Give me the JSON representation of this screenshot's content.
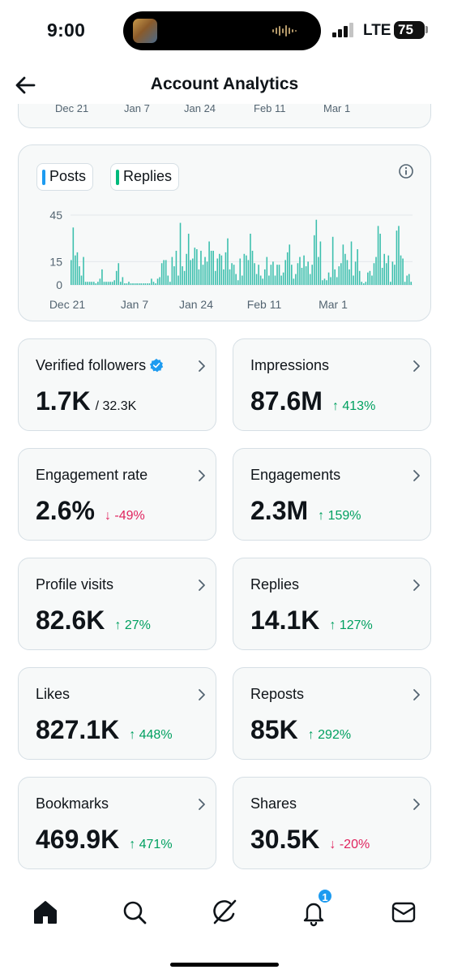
{
  "status_bar": {
    "time": "9:00",
    "network": "LTE",
    "battery": "75"
  },
  "header": {
    "title": "Account Analytics"
  },
  "top_chart": {
    "x_labels": [
      "Dec 21",
      "Jan 7",
      "Jan 24",
      "Feb 11",
      "Mar 1"
    ]
  },
  "chart_data": {
    "type": "bar",
    "legend": [
      "Posts",
      "Replies"
    ],
    "series": [
      {
        "name": "Replies",
        "values": [
          16,
          37,
          19,
          21,
          12,
          6,
          18,
          2,
          2,
          2,
          2,
          2,
          1,
          2,
          4,
          10,
          2,
          2,
          2,
          2,
          2,
          3,
          9,
          14,
          2,
          5,
          1,
          1,
          2,
          1,
          1,
          1,
          1,
          1,
          1,
          1,
          1,
          1,
          1,
          4,
          2,
          1,
          4,
          5,
          14,
          16,
          16,
          6,
          2,
          18,
          12,
          22,
          6,
          40,
          12,
          9,
          20,
          33,
          16,
          17,
          24,
          23,
          10,
          22,
          13,
          18,
          15,
          28,
          22,
          22,
          9,
          17,
          20,
          19,
          10,
          21,
          30,
          10,
          14,
          13,
          7,
          3,
          17,
          6,
          20,
          19,
          16,
          33,
          22,
          14,
          7,
          13,
          6,
          4,
          10,
          18,
          6,
          13,
          15,
          6,
          13,
          13,
          6,
          8,
          16,
          21,
          26,
          13,
          4,
          7,
          14,
          18,
          11,
          19,
          12,
          15,
          7,
          13,
          32,
          42,
          18,
          28,
          3,
          4,
          3,
          8,
          5,
          31,
          10,
          5,
          12,
          14,
          26,
          20,
          16,
          10,
          28,
          6,
          15,
          23,
          9,
          2,
          1,
          2,
          8,
          9,
          6,
          14,
          18,
          38,
          33,
          11,
          20,
          14,
          19,
          2,
          15,
          13,
          35,
          38,
          19,
          17,
          2,
          6,
          7,
          2
        ]
      }
    ],
    "x_tick_labels": [
      "Dec 21",
      "Jan 7",
      "Jan 24",
      "Feb 11",
      "Mar 1"
    ],
    "y_tick_labels": [
      "0",
      "15",
      "45"
    ],
    "ylim": [
      0,
      45
    ],
    "colors": {
      "posts": "#1d9bf0",
      "replies": "#00ba7c",
      "bar": "#3bbfad"
    }
  },
  "metrics": [
    {
      "label": "Verified followers",
      "value": "1.7K",
      "sub": "/ 32.3K",
      "delta": "",
      "verified": true
    },
    {
      "label": "Impressions",
      "value": "87.6M",
      "sub": "",
      "delta": "↑ 413%",
      "dir": "up"
    },
    {
      "label": "Engagement rate",
      "value": "2.6%",
      "sub": "",
      "delta": "↓ -49%",
      "dir": "down"
    },
    {
      "label": "Engagements",
      "value": "2.3M",
      "sub": "",
      "delta": "↑ 159%",
      "dir": "up"
    },
    {
      "label": "Profile visits",
      "value": "82.6K",
      "sub": "",
      "delta": "↑ 27%",
      "dir": "up"
    },
    {
      "label": "Replies",
      "value": "14.1K",
      "sub": "",
      "delta": "↑ 127%",
      "dir": "up"
    },
    {
      "label": "Likes",
      "value": "827.1K",
      "sub": "",
      "delta": "↑ 448%",
      "dir": "up"
    },
    {
      "label": "Reposts",
      "value": "85K",
      "sub": "",
      "delta": "↑ 292%",
      "dir": "up"
    },
    {
      "label": "Bookmarks",
      "value": "469.9K",
      "sub": "",
      "delta": "↑ 471%",
      "dir": "up"
    },
    {
      "label": "Shares",
      "value": "30.5K",
      "sub": "",
      "delta": "↓ -20%",
      "dir": "down"
    }
  ],
  "bottom_nav": {
    "items": [
      "home-icon",
      "search-icon",
      "grok-icon",
      "notifications-icon",
      "messages-icon"
    ],
    "notification_badge": "1"
  }
}
